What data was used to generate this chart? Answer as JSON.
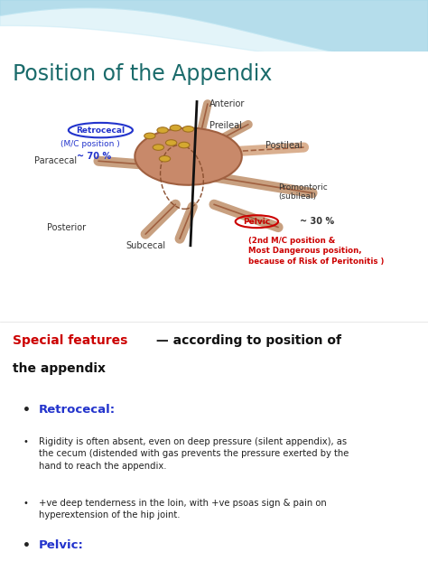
{
  "title": "Position of the Appendix",
  "title_color": "#1a6b6b",
  "title_fontsize": 17,
  "bg_color": "#ffffff",
  "wave_color1": "#a8d8e8",
  "wave_color2": "#c8eaf5",
  "section_special": "Special features",
  "section_special_color": "#cc0000",
  "section_rest": " — according to position of",
  "section_line2": "the appendix",
  "section_color": "#111111",
  "section_fontsize": 10,
  "retrocecal_label": "Retrocecal:",
  "retrocecal_color": "#2233cc",
  "pelvic_label": "Pelvic:",
  "pelvic_color": "#2233cc",
  "bullet_color": "#222222",
  "bullet_fontsize": 7.2,
  "heading_fontsize": 9.5,
  "retrocecal_ann_top": "Retrocecal",
  "retrocecal_ann_mid": "(M/C position )",
  "retrocecal_ann_bot": "~ 70 %",
  "retrocecal_ann_color": "#2233cc",
  "pelvic_circle_label": "Pelvic",
  "pelvic_ann_pct": "~ 30 %",
  "pelvic_ann_detail": "(2nd M/C position &\nMost Dangerous position,\nbecause of Risk of Peritonitis )",
  "pelvic_ann_color": "#cc0000",
  "diag_label_color": "#333333",
  "diag_label_fs": 7,
  "cecum_face": "#c8896a",
  "cecum_edge": "#a06040",
  "tube_face": "#c8a080",
  "tube_edge": "#a06040",
  "dot_face": "#d4a830",
  "dot_edge": "#a07020",
  "line_black": "#111111"
}
